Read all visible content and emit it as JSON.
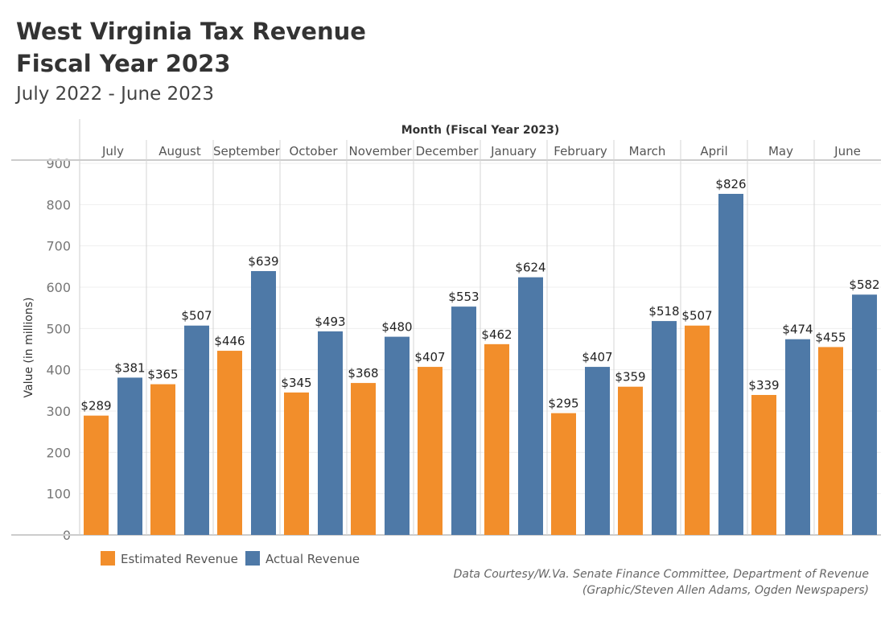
{
  "title": "West Virginia Tax Revenue",
  "title2": "Fiscal Year 2023",
  "subtitle": "July 2022 - June 2023",
  "source1": "Data Courtesy/W.Va. Senate Finance Committee, Department of Revenue",
  "source2": "(Graphic/Steven Allen Adams, Ogden Newspapers)",
  "chart_data": {
    "type": "bar",
    "xlabel": "Month (Fiscal Year 2023)",
    "ylabel": "Value (in millions)",
    "ylim": [
      0,
      900
    ],
    "yticks": [
      0,
      100,
      200,
      300,
      400,
      500,
      600,
      700,
      800,
      900
    ],
    "grid": true,
    "legend": "bottom-left",
    "categories": [
      "July",
      "August",
      "September",
      "October",
      "November",
      "December",
      "January",
      "February",
      "March",
      "April",
      "May",
      "June"
    ],
    "series": [
      {
        "name": "Estimated Revenue",
        "color": "#F28E2B",
        "values": [
          289,
          365,
          446,
          345,
          368,
          407,
          462,
          295,
          359,
          507,
          339,
          455
        ]
      },
      {
        "name": "Actual Revenue",
        "color": "#4E79A7",
        "values": [
          381,
          507,
          639,
          493,
          480,
          553,
          624,
          407,
          518,
          826,
          474,
          582
        ]
      }
    ],
    "label_prefix": "$"
  }
}
